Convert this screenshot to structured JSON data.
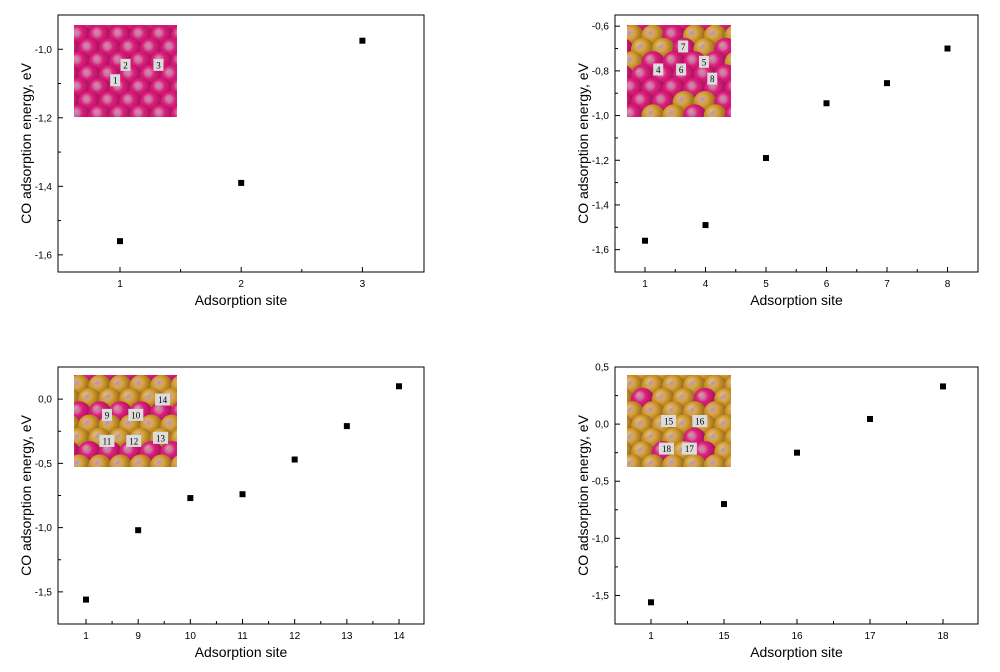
{
  "chart_data": [
    {
      "type": "scatter",
      "title": "",
      "xlabel": "Adsorption site",
      "ylabel": "CO adsorption energy,  eV",
      "categories": [
        "1",
        "2",
        "3"
      ],
      "values": [
        -1.56,
        -1.39,
        -0.975
      ],
      "ylim": [
        -1.65,
        -0.9
      ],
      "yticks": [
        -1.6,
        -1.4,
        -1.2,
        -1.0
      ],
      "ytick_labels": [
        "-1,6",
        "-1,4",
        "-1,2",
        "-1,0"
      ],
      "grid": false,
      "inset": {
        "pattern": [
          "P",
          "P",
          "P",
          "P",
          "P",
          "P",
          "P",
          "P",
          "P",
          "P",
          "P",
          "P",
          "P",
          "P",
          "P",
          "P",
          "P",
          "P",
          "P",
          "P",
          "P",
          "P",
          "P",
          "P",
          "P",
          "P",
          "P",
          "P",
          "P",
          "P",
          "P",
          "P",
          "P",
          "P",
          "P",
          "P",
          "P",
          "P",
          "P",
          "P"
        ],
        "labels": [
          {
            "text": "2",
            "col": 2.5,
            "row": 1.3
          },
          {
            "text": "3",
            "col": 4.1,
            "row": 1.3
          },
          {
            "text": "1",
            "col": 2.0,
            "row": 1.8
          }
        ]
      }
    },
    {
      "type": "scatter",
      "title": "",
      "xlabel": "Adsorption site",
      "ylabel": "CO adsorption energy,  eV",
      "categories": [
        "1",
        "4",
        "5",
        "6",
        "7",
        "8"
      ],
      "values": [
        -1.56,
        -1.49,
        -1.19,
        -0.945,
        -0.855,
        -0.7
      ],
      "ylim": [
        -1.7,
        -0.55
      ],
      "yticks": [
        -1.6,
        -1.4,
        -1.2,
        -1.0,
        -0.8,
        -0.6
      ],
      "ytick_labels": [
        "-1,6",
        "-1,4",
        "-1,2",
        "-1,0",
        "-0,8",
        "-0,6"
      ],
      "grid": false,
      "inset": {
        "pattern": [
          "P",
          "P",
          "P",
          "P",
          "P",
          "G",
          "G",
          "P",
          "G",
          "G",
          "P",
          "G",
          "G",
          "P",
          "G",
          "G",
          "P",
          "P",
          "P",
          "P",
          "P",
          "P",
          "P",
          "P",
          "P",
          "P",
          "P",
          "P",
          "P",
          "P",
          "P",
          "P",
          "P",
          "G",
          "G",
          "P",
          "G",
          "G",
          "P",
          "G"
        ],
        "labels": [
          {
            "text": "7",
            "col": 2.7,
            "row": 0.7
          },
          {
            "text": "5",
            "col": 3.7,
            "row": 1.2
          },
          {
            "text": "4",
            "col": 1.5,
            "row": 1.45
          },
          {
            "text": "6",
            "col": 2.6,
            "row": 1.45
          },
          {
            "text": "8",
            "col": 4.1,
            "row": 1.75
          }
        ]
      }
    },
    {
      "type": "scatter",
      "title": "",
      "xlabel": "Adsorption site",
      "ylabel": "CO adsorption energy,  eV",
      "categories": [
        "1",
        "9",
        "10",
        "11",
        "12",
        "13",
        "14"
      ],
      "values": [
        -1.56,
        -1.02,
        -0.77,
        -0.74,
        -0.47,
        -0.21,
        0.1
      ],
      "ylim": [
        -1.75,
        0.25
      ],
      "yticks": [
        -1.5,
        -1.0,
        -0.5,
        0.0
      ],
      "ytick_labels": [
        "-1,5",
        "-1,0",
        "-0,5",
        "0,0"
      ],
      "grid": false,
      "inset": {
        "pattern": [
          "P",
          "P",
          "P",
          "P",
          "P",
          "G",
          "G",
          "G",
          "G",
          "G",
          "G",
          "G",
          "G",
          "G",
          "G",
          "P",
          "P",
          "P",
          "P",
          "P",
          "G",
          "G",
          "G",
          "G",
          "G",
          "G",
          "G",
          "G",
          "G",
          "G",
          "P",
          "P",
          "P",
          "P",
          "P",
          "G",
          "G",
          "G",
          "G",
          "G"
        ],
        "labels": [
          {
            "text": "14",
            "col": 4.3,
            "row": 0.8
          },
          {
            "text": "9",
            "col": 1.6,
            "row": 1.3
          },
          {
            "text": "10",
            "col": 3.0,
            "row": 1.3
          },
          {
            "text": "13",
            "col": 4.2,
            "row": 2.05
          },
          {
            "text": "11",
            "col": 1.6,
            "row": 2.15
          },
          {
            "text": "12",
            "col": 2.9,
            "row": 2.15
          }
        ]
      }
    },
    {
      "type": "scatter",
      "title": "",
      "xlabel": "Adsorption site",
      "ylabel": "CO adsorption energy,  eV",
      "categories": [
        "1",
        "15",
        "16",
        "17",
        "18"
      ],
      "values": [
        -1.56,
        -0.7,
        -0.25,
        0.045,
        0.33
      ],
      "ylim": [
        -1.75,
        0.5
      ],
      "yticks": [
        -1.5,
        -1.0,
        -0.5,
        0.0,
        0.5
      ],
      "ytick_labels": [
        "-1,5",
        "-1,0",
        "-0,5",
        "0,0",
        "0,5"
      ],
      "grid": false,
      "inset": {
        "pattern": [
          "G",
          "G",
          "G",
          "G",
          "G",
          "G",
          "G",
          "G",
          "G",
          "G",
          "G",
          "P",
          "G",
          "G",
          "P",
          "G",
          "G",
          "G",
          "G",
          "G",
          "G",
          "G",
          "G",
          "G",
          "G",
          "G",
          "G",
          "G",
          "P",
          "G",
          "G",
          "G",
          "P",
          "G",
          "P",
          "G",
          "G",
          "G",
          "G",
          "G"
        ],
        "labels": [
          {
            "text": "15",
            "col": 2.0,
            "row": 1.5
          },
          {
            "text": "16",
            "col": 3.5,
            "row": 1.5
          },
          {
            "text": "18",
            "col": 1.9,
            "row": 2.4
          },
          {
            "text": "17",
            "col": 3.0,
            "row": 2.4
          }
        ]
      }
    }
  ],
  "colors": {
    "P": "#e0207f",
    "G": "#d8a033",
    "frame": "#000000",
    "marker": "#000000",
    "label_box": "#dcdcdc"
  }
}
